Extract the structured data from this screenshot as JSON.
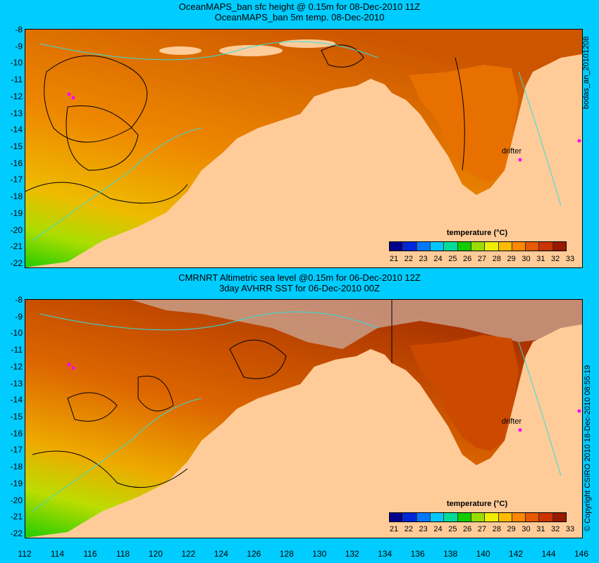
{
  "top_panel": {
    "title_line1": "OceanMAPS_ban sfc height @ 0.15m for 08-Dec-2010 11Z",
    "title_line2": "OceanMAPS_ban 5m temp. 08-Dec-2010",
    "side_label": "bodas_an_20101208",
    "drifter_label": "drifter"
  },
  "bottom_panel": {
    "title_line1": "CMRNRT Altimetric sea level  @0.15m  for 06-Dec-2010 12Z",
    "title_line2": "3day AVHRR SST for 06-Dec-2010 00Z",
    "side_label": "© Copyright CSIRO 2010  18-Dec-2010 08:55:19",
    "drifter_label": "drifter"
  },
  "colorbar": {
    "title": "temperature (°C)",
    "ticks": [
      "21",
      "22",
      "23",
      "24",
      "25",
      "26",
      "27",
      "28",
      "29",
      "30",
      "31",
      "32",
      "33"
    ],
    "colors": [
      "#00008c",
      "#0026d9",
      "#0078ff",
      "#00c8ff",
      "#00dd99",
      "#11cc00",
      "#99dd00",
      "#eeee00",
      "#ffbb00",
      "#ff8800",
      "#e85800",
      "#cc3300",
      "#991a00"
    ]
  },
  "y_axis_ticks": [
    "-8",
    "-9",
    "-10",
    "-11",
    "-12",
    "-13",
    "-14",
    "-15",
    "-16",
    "-17",
    "-18",
    "-19",
    "-20",
    "-21",
    "-22"
  ],
  "x_axis_ticks": [
    "112",
    "114",
    "116",
    "118",
    "120",
    "122",
    "124",
    "126",
    "128",
    "130",
    "132",
    "134",
    "136",
    "138",
    "140",
    "142",
    "144",
    "146"
  ]
}
